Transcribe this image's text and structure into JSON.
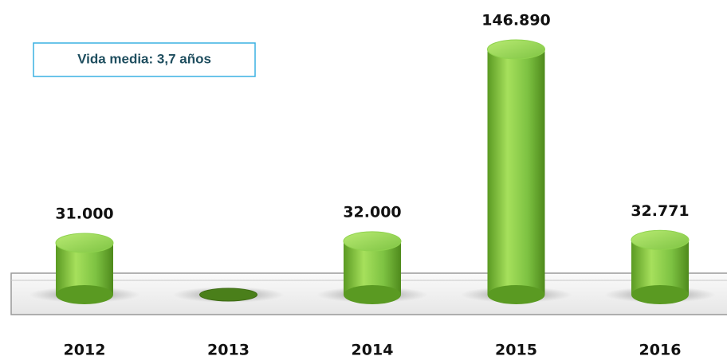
{
  "chart_data": {
    "type": "bar",
    "categories": [
      "2012",
      "2013",
      "2014",
      "2015",
      "2016"
    ],
    "values": [
      31000,
      0,
      32000,
      146890,
      32771
    ],
    "value_labels": [
      "31.000",
      null,
      "32.000",
      "146.890",
      "32.771"
    ],
    "color": "#7dc242",
    "annotation": "Vida media: 3,7 años"
  }
}
